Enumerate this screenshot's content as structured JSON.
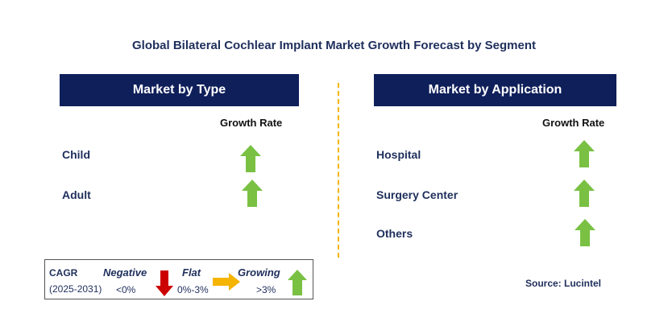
{
  "title": "Global Bilateral Cochlear Implant Market Growth Forecast by Segment",
  "left_panel": {
    "header": "Market by Type",
    "growth_rate_label": "Growth Rate",
    "segments": [
      {
        "label": "Child",
        "trend": "growing"
      },
      {
        "label": "Adult",
        "trend": "growing"
      }
    ]
  },
  "right_panel": {
    "header": "Market by Application",
    "growth_rate_label": "Growth Rate",
    "segments": [
      {
        "label": "Hospital",
        "trend": "growing"
      },
      {
        "label": "Surgery Center",
        "trend": "growing"
      },
      {
        "label": "Others",
        "trend": "growing"
      }
    ]
  },
  "legend": {
    "cagr_label": "CAGR",
    "period": "(2025-2031)",
    "negative_label": "Negative",
    "negative_range": "<0%",
    "flat_label": "Flat",
    "flat_range": "0%-3%",
    "growing_label": "Growing",
    "growing_range": ">3%"
  },
  "source": "Source: Lucintel",
  "colors": {
    "header_bg": "#0f1f5a",
    "growing_arrow": "#7ac143",
    "negative_arrow": "#cc0000",
    "flat_arrow": "#f5b400"
  }
}
